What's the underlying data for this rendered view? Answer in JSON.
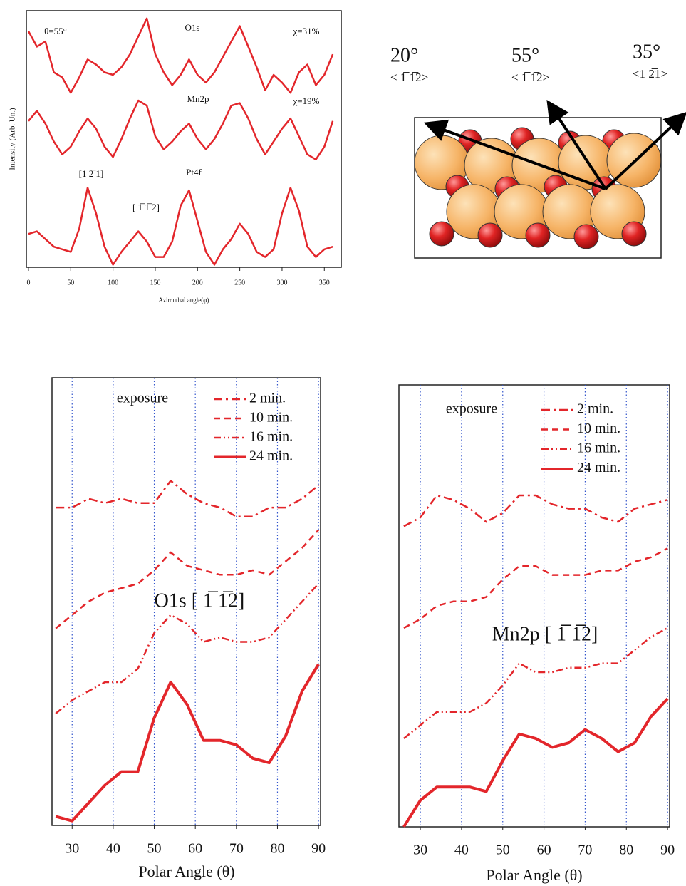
{
  "chart_data": [
    {
      "type": "line",
      "xlabel": "Azimuthal angle(φ)",
      "ylabel": "Intensity (Arb. Un.)",
      "x": [
        0,
        10,
        20,
        30,
        40,
        50,
        60,
        70,
        80,
        90,
        100,
        110,
        120,
        130,
        140,
        150,
        160,
        170,
        180,
        190,
        200,
        210,
        220,
        230,
        240,
        250,
        260,
        270,
        280,
        290,
        300,
        310,
        320,
        330,
        340,
        350,
        360
      ],
      "xlim": [
        -2.5,
        370
      ],
      "xticks": [
        0,
        50,
        100,
        150,
        200,
        250,
        300,
        350
      ],
      "ylim": [
        0,
        100
      ],
      "series": [
        {
          "name": "O1s",
          "color": "#e3262b",
          "dash": "solid",
          "values": [
            92,
            86,
            88,
            76,
            74,
            68,
            74,
            81,
            79,
            76,
            75,
            78,
            83,
            90,
            97,
            83,
            76,
            71,
            75,
            81,
            75,
            72,
            76,
            82,
            88,
            94,
            86,
            78,
            69,
            75,
            72,
            68,
            76,
            79,
            71,
            75,
            83
          ]
        },
        {
          "name": "Mn2p",
          "color": "#e3262b",
          "dash": "solid",
          "values": [
            57,
            61,
            56,
            49,
            44,
            47,
            53,
            58,
            54,
            47,
            43,
            50,
            58,
            65,
            63,
            51,
            46,
            49,
            53,
            56,
            50,
            46,
            50,
            56,
            63,
            64,
            58,
            50,
            44,
            49,
            54,
            58,
            51,
            44,
            42,
            47,
            57
          ]
        },
        {
          "name": "Pt4f",
          "color": "#e3262b",
          "dash": "solid",
          "values": [
            13,
            14,
            11,
            8,
            7,
            6,
            15,
            31,
            21,
            8,
            1,
            6,
            10,
            14,
            10,
            4,
            4,
            10,
            24,
            30,
            18,
            6,
            1,
            7,
            11,
            17,
            13,
            6,
            4,
            7,
            21,
            31,
            22,
            8,
            4,
            7,
            8
          ]
        }
      ],
      "annotations": [
        "θ=55°",
        "χ=31%",
        "χ=19%",
        "[1 2̅ 1]",
        "[ 1̅  1̅ 2]"
      ]
    },
    {
      "type": "line",
      "xlabel": "Polar Angle (θ)",
      "legend_title": "exposure",
      "grid": "x",
      "x": [
        26,
        30,
        34,
        38,
        42,
        46,
        50,
        54,
        58,
        62,
        66,
        70,
        74,
        78,
        82,
        86,
        90
      ],
      "xlim": [
        25.1,
        90.5
      ],
      "xticks": [
        30,
        40,
        50,
        60,
        70,
        80,
        90
      ],
      "ylim": [
        0,
        100
      ],
      "series": [
        {
          "name": "2 min.",
          "color": "#e3262b",
          "dash": "dashdot",
          "values": [
            71,
            71,
            73,
            72,
            73,
            72,
            72,
            77,
            74,
            72,
            71,
            69,
            69,
            71,
            71,
            73,
            76
          ]
        },
        {
          "name": "10 min.",
          "color": "#e3262b",
          "dash": "dashed",
          "values": [
            44,
            47,
            50,
            52,
            53,
            54,
            57,
            61,
            58,
            57,
            56,
            56,
            57,
            56,
            59,
            62,
            66
          ]
        },
        {
          "name": "16 min.",
          "color": "#e3262b",
          "dash": "dashdotdot",
          "values": [
            25,
            28,
            30,
            32,
            32,
            35,
            43,
            47,
            45,
            41,
            42,
            41,
            41,
            42,
            46,
            50,
            54
          ]
        },
        {
          "name": "24 min.",
          "color": "#e3262b",
          "dash": "solid",
          "values": [
            2,
            1,
            5,
            9,
            12,
            12,
            24,
            32,
            27,
            19,
            19,
            18,
            15,
            14,
            20,
            30,
            36
          ]
        }
      ],
      "annotations": [
        "O1s [ 1̅  1̅2]"
      ]
    },
    {
      "type": "line",
      "xlabel": "Polar Angle (θ)",
      "legend_title": "exposure",
      "grid": "x",
      "x": [
        26,
        30,
        34,
        38,
        42,
        46,
        50,
        54,
        58,
        62,
        66,
        70,
        74,
        78,
        82,
        86,
        90
      ],
      "xlim": [
        24.8,
        90.5
      ],
      "xticks": [
        30,
        40,
        50,
        60,
        70,
        80,
        90
      ],
      "ylim": [
        0,
        100
      ],
      "series": [
        {
          "name": "2 min.",
          "color": "#e3262b",
          "dash": "dashdot",
          "values": [
            68,
            70,
            75,
            74,
            72,
            69,
            71,
            75,
            75,
            73,
            72,
            72,
            70,
            69,
            72,
            73,
            74
          ]
        },
        {
          "name": "10 min.",
          "color": "#e3262b",
          "dash": "dashed",
          "values": [
            45,
            47,
            50,
            51,
            51,
            52,
            56,
            59,
            59,
            57,
            57,
            57,
            58,
            58,
            60,
            61,
            63
          ]
        },
        {
          "name": "16 min.",
          "color": "#e3262b",
          "dash": "dashdotdot",
          "values": [
            20,
            23,
            26,
            26,
            26,
            28,
            32,
            37,
            35,
            35,
            36,
            36,
            37,
            37,
            40,
            43,
            45
          ]
        },
        {
          "name": "24 min.",
          "color": "#e3262b",
          "dash": "solid",
          "values": [
            0,
            6,
            9,
            9,
            9,
            8,
            15,
            21,
            20,
            18,
            19,
            22,
            20,
            17,
            19,
            25,
            29
          ]
        }
      ],
      "annotations": [
        "Mn2p  [ 1̅  1̅2]"
      ]
    }
  ],
  "diagram": {
    "labels": [
      {
        "angle": "20°",
        "direction": "< 1̅  1̅2>"
      },
      {
        "angle": "55°",
        "direction": "< 1̅  1̅2>"
      },
      {
        "angle": "35°",
        "direction": "<1  2̅1>"
      }
    ]
  }
}
